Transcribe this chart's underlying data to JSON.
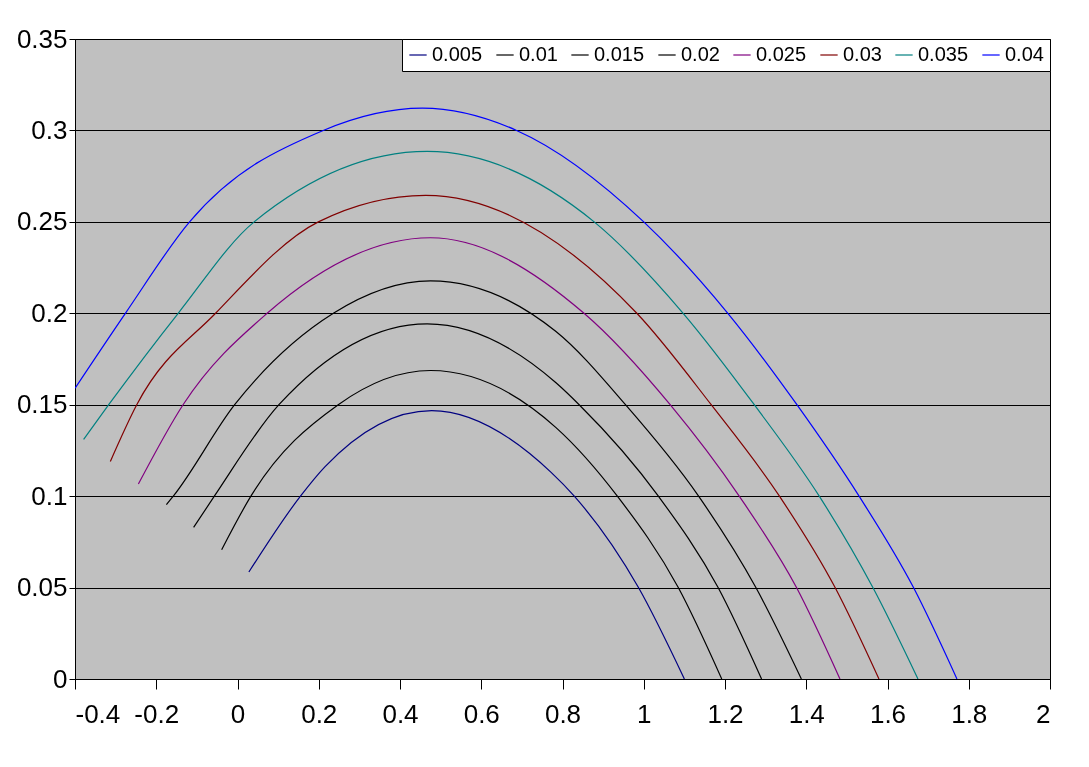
{
  "chart_data": {
    "type": "line",
    "xlim": [
      -0.4,
      2
    ],
    "xticks": [
      -0.4,
      -0.2,
      0,
      0.2,
      0.4,
      0.6,
      0.8,
      1,
      1.2,
      1.4,
      1.6,
      1.8,
      2
    ],
    "ylim": [
      0,
      0.35
    ],
    "yticks": [
      0,
      0.05,
      0.1,
      0.15,
      0.2,
      0.25,
      0.3,
      0.35
    ],
    "grid": "y",
    "legend": "top right",
    "series": [
      {
        "name": "0.005",
        "color": "#000080",
        "x": [
          0.028,
          0.155,
          0.215,
          0.478,
          0.772,
          0.829,
          0.987,
          1.1
        ],
        "values": [
          0.0585,
          0.1,
          0.116,
          0.1468,
          0.113,
          0.1,
          0.05,
          0
        ]
      },
      {
        "name": "0.01",
        "color": "#000000",
        "x": [
          -0.039,
          0.033,
          0.248,
          0.475,
          0.784,
          0.935,
          1.085,
          1.192
        ],
        "values": [
          0.0707,
          0.1,
          0.15,
          0.1687,
          0.1375,
          0.1,
          0.05,
          0
        ]
      },
      {
        "name": "0.015",
        "color": "#000000",
        "x": [
          -0.108,
          -0.057,
          0.102,
          0.467,
          0.784,
          0.841,
          1.036,
          1.183,
          1.29
        ],
        "values": [
          0.0829,
          0.1,
          0.15,
          0.1942,
          0.162,
          0.15,
          0.1,
          0.05,
          0
        ]
      },
      {
        "name": "0.02",
        "color": "#000000",
        "x": [
          -0.175,
          -0.158,
          -0.007,
          0.236,
          0.475,
          0.784,
          0.955,
          1.135,
          1.276,
          1.388
        ],
        "values": [
          0.0954,
          0.1,
          0.15,
          0.2,
          0.2177,
          0.19,
          0.15,
          0.1,
          0.05,
          0
        ]
      },
      {
        "name": "0.025",
        "color": "#800080",
        "x": [
          -0.244,
          -0.134,
          0.073,
          0.475,
          0.853,
          1.065,
          1.235,
          1.376,
          1.483
        ],
        "values": [
          0.1066,
          0.15,
          0.2,
          0.2413,
          0.2,
          0.15,
          0.1,
          0.05,
          0
        ]
      },
      {
        "name": "0.03",
        "color": "#800000",
        "x": [
          -0.313,
          -0.248,
          -0.054,
          0.199,
          0.463,
          0.983,
          1.166,
          1.334,
          1.471,
          1.579
        ],
        "values": [
          0.119,
          0.15,
          0.2,
          0.25,
          0.2645,
          0.2,
          0.15,
          0.1,
          0.05,
          0
        ]
      },
      {
        "name": "0.035",
        "color": "#008080",
        "x": [
          -0.379,
          -0.317,
          -0.146,
          0.041,
          0.467,
          0.878,
          1.097,
          1.272,
          1.432,
          1.564,
          1.675
        ],
        "values": [
          0.131,
          0.15,
          0.2,
          0.25,
          0.2885,
          0.25,
          0.2,
          0.15,
          0.1,
          0.05,
          0
        ]
      },
      {
        "name": "0.04",
        "color": "#0000ff",
        "x": [
          -0.4,
          -0.276,
          -0.118,
          0.211,
          0.455,
          0.687,
          1.0,
          1.207,
          1.377,
          1.53,
          1.664,
          1.771
        ],
        "values": [
          0.159,
          0.2,
          0.25,
          0.3,
          0.3122,
          0.3,
          0.25,
          0.2,
          0.15,
          0.1,
          0.05,
          0
        ]
      }
    ]
  }
}
